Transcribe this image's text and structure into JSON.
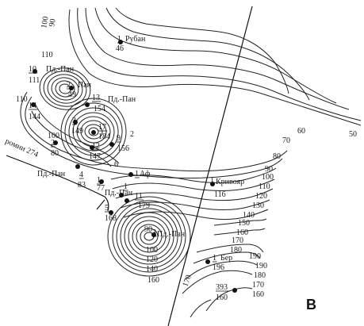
{
  "figure": {
    "panel_letter": "В"
  },
  "contours": {
    "labels": [
      "100",
      "90",
      "110",
      "110",
      "100",
      "60",
      "50",
      "70",
      "80",
      "90",
      "100",
      "110",
      "120",
      "130",
      "140",
      "150",
      "160",
      "170",
      "180",
      "190",
      "190",
      "180",
      "170",
      "160",
      "170",
      "90",
      "100",
      "120",
      "140",
      "160"
    ]
  },
  "fault": {
    "label": "ромни 274"
  },
  "wells": [
    {
      "num": "1",
      "name": "Рубан",
      "value": "46"
    },
    {
      "num": "10",
      "name": "Пд.-Пан",
      "value": "111"
    },
    {
      "num": "2",
      "name": "Пан",
      "value": "49"
    },
    {
      "num": "14",
      "name": "",
      "value": "144"
    },
    {
      "num": "13",
      "name": "Пд.-Пан",
      "value": "154"
    },
    {
      "num": "3",
      "name": "",
      "value": "149"
    },
    {
      "num": "17",
      "name": "",
      "value": "184"
    },
    {
      "num": "2",
      "name": "",
      "value": "80"
    },
    {
      "num": "12",
      "name": "",
      "value": "147"
    },
    {
      "num": "9",
      "name": "",
      "value": "156"
    },
    {
      "num": "4",
      "name": "Пд.-Пан",
      "value": "83"
    },
    {
      "num": "1",
      "name": "Аф",
      "value": ""
    },
    {
      "num": "1",
      "name": "",
      "value": "77"
    },
    {
      "num": "1",
      "name": "Пд.-Пан",
      "value": ""
    },
    {
      "num": "11",
      "name": "",
      "value": "179"
    },
    {
      "num": "5",
      "name": "",
      "value": "168"
    },
    {
      "num": "1",
      "name": "Кривояр",
      "value": "116"
    },
    {
      "num": "3",
      "name": "Пд.-Пан",
      "value": ""
    },
    {
      "num": "1",
      "name": "Бер",
      "value": "196"
    },
    {
      "num": "393",
      "name": "",
      "value": "160"
    }
  ],
  "tick_labels": [
    "6",
    "2"
  ]
}
